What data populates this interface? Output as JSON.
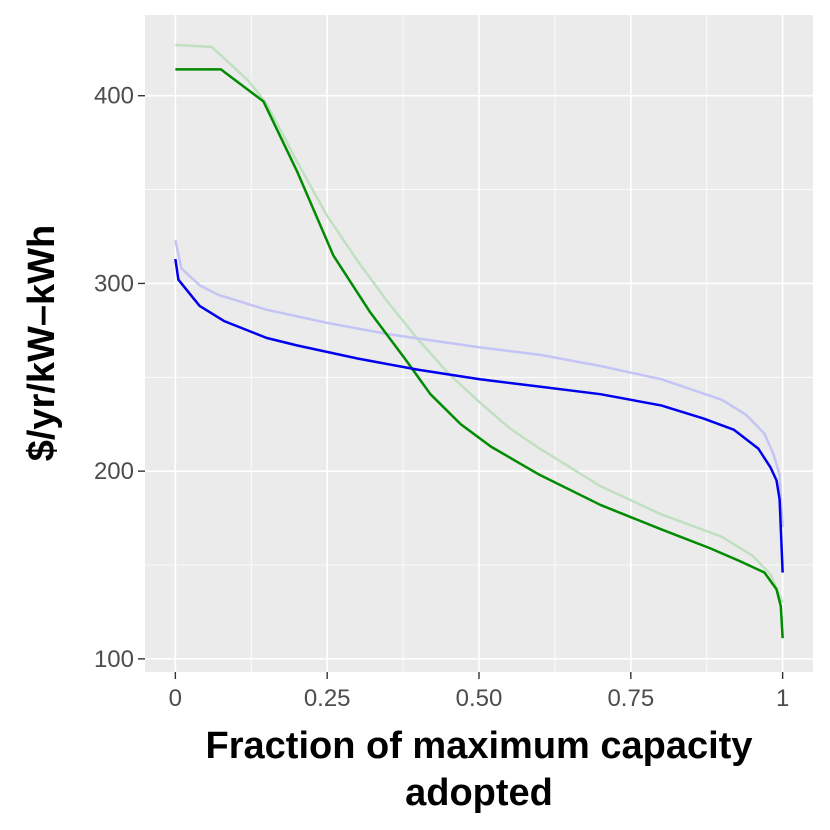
{
  "chart_data": {
    "type": "line",
    "x_label": [
      "Fraction of maximum capacity",
      "adopted"
    ],
    "y_label": "$/yr/kW–kWh",
    "xlim": [
      -0.05,
      1.05
    ],
    "ylim": [
      93,
      443
    ],
    "xticks": [
      0,
      0.25,
      {
        "value": 0.5,
        "label": "0.50"
      },
      0.75,
      1
    ],
    "yticks": [
      100,
      200,
      300,
      400
    ],
    "grid": true,
    "minor_grid": true,
    "series": [
      {
        "color": "#c1dfc1",
        "x": [
          0,
          0.06,
          0.12,
          0.15,
          0.2,
          0.25,
          0.3,
          0.35,
          0.4,
          0.45,
          0.5,
          0.55,
          0.6,
          0.7,
          0.8,
          0.9,
          0.95,
          0.98,
          1
        ],
        "values": [
          427,
          426,
          408,
          396,
          365,
          336,
          312,
          290,
          270,
          252,
          237,
          223,
          212,
          192,
          177,
          165,
          155,
          145,
          130
        ]
      },
      {
        "color": "#c4c4f5",
        "x": [
          0,
          0.01,
          0.04,
          0.07,
          0.15,
          0.25,
          0.35,
          0.5,
          0.6,
          0.7,
          0.8,
          0.9,
          0.94,
          0.97,
          0.985,
          0.995,
          1
        ],
        "values": [
          323,
          308,
          299,
          294,
          286,
          279,
          273,
          266,
          262,
          256,
          249,
          238,
          230,
          220,
          209,
          198,
          170
        ]
      },
      {
        "color": "#008b00",
        "x": [
          0,
          0.075,
          0.145,
          0.2,
          0.26,
          0.32,
          0.38,
          0.42,
          0.47,
          0.52,
          0.6,
          0.7,
          0.8,
          0.88,
          0.93,
          0.97,
          0.99,
          0.997,
          1
        ],
        "values": [
          414,
          414,
          397,
          360,
          315,
          285,
          259,
          241,
          225,
          213,
          198,
          182,
          169,
          159,
          152,
          146,
          137,
          128,
          111
        ]
      },
      {
        "color": "#0000ee",
        "x": [
          0,
          0.005,
          0.015,
          0.04,
          0.08,
          0.15,
          0.2,
          0.3,
          0.4,
          0.5,
          0.6,
          0.7,
          0.8,
          0.87,
          0.92,
          0.96,
          0.98,
          0.99,
          0.995,
          1
        ],
        "values": [
          313,
          302,
          298,
          288,
          280,
          271,
          267,
          260,
          254,
          249,
          245,
          241,
          235,
          228,
          222,
          212,
          202,
          195,
          185,
          146
        ]
      }
    ]
  }
}
